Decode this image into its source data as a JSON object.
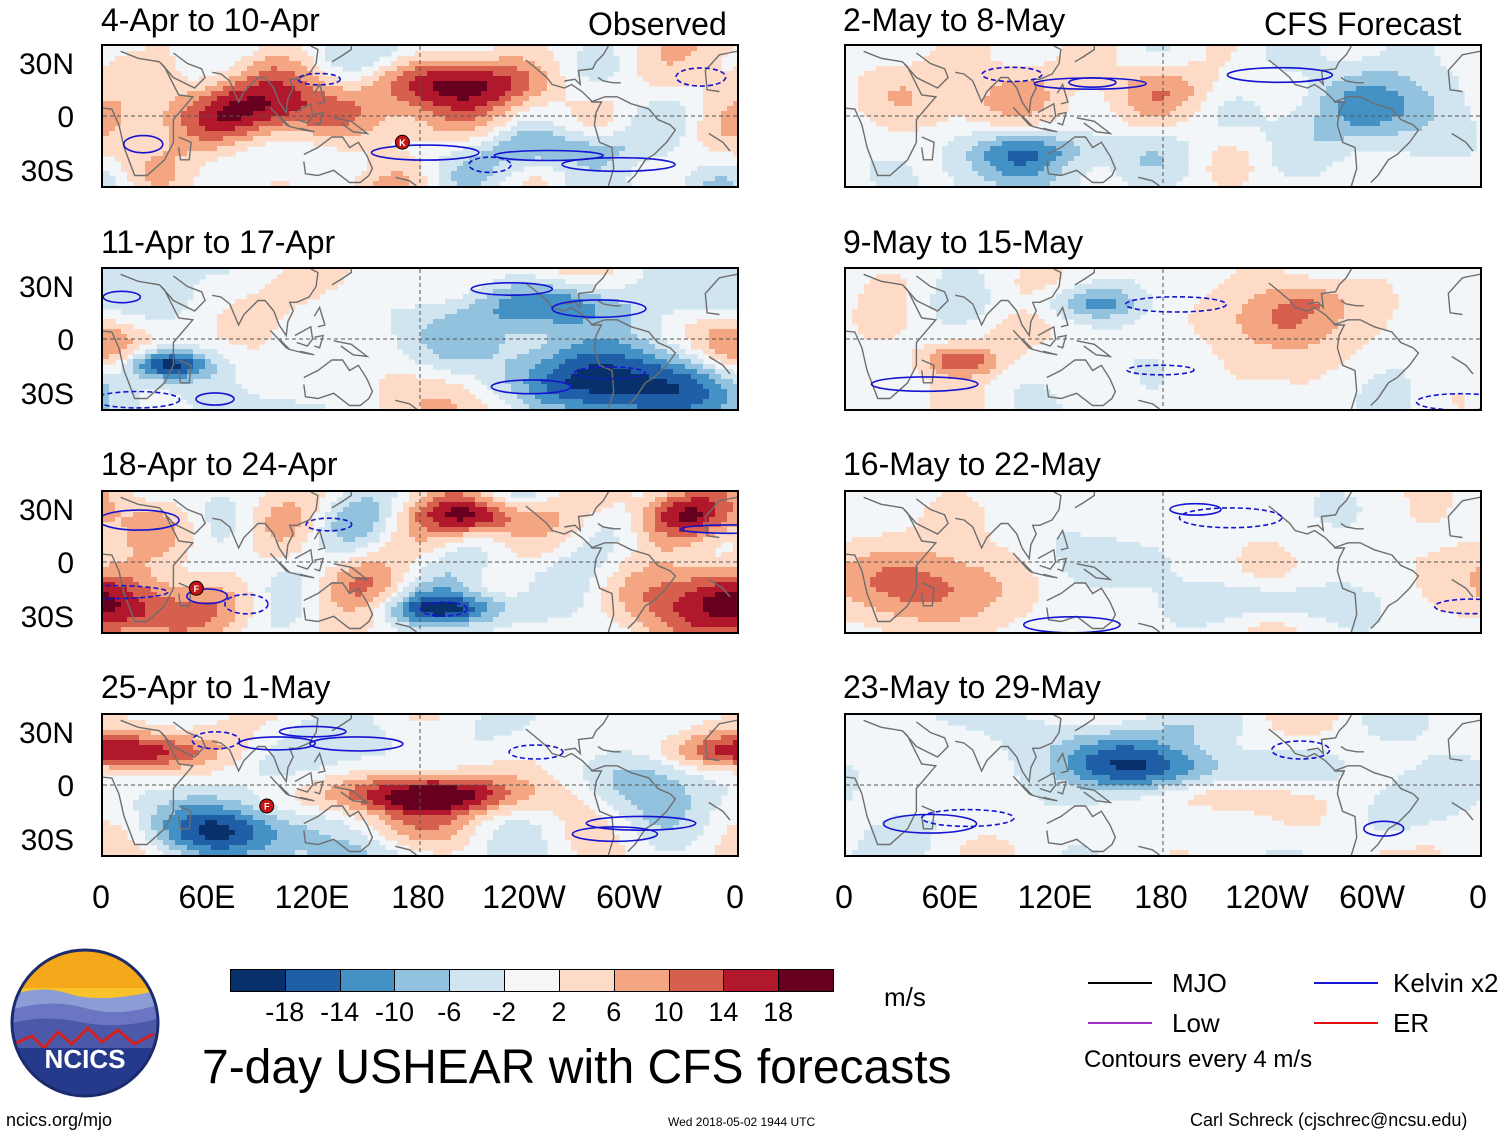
{
  "figure": {
    "title": "7-day USHEAR with CFS forecasts",
    "observed_header": "Observed",
    "forecast_header": "CFS Forecast"
  },
  "axes": {
    "lat_labels": [
      "30N",
      "0",
      "30S"
    ],
    "lon_labels": [
      "0",
      "60E",
      "120E",
      "180",
      "120W",
      "60W",
      "0"
    ]
  },
  "panels": {
    "observed": [
      {
        "period": "4-Apr to 10-Apr",
        "storms": [
          {
            "code": "K",
            "lon": 170,
            "lat": -15
          }
        ]
      },
      {
        "period": "11-Apr to 17-Apr",
        "storms": []
      },
      {
        "period": "18-Apr to 24-Apr",
        "storms": [
          {
            "code": "F",
            "lon": 53,
            "lat": -15
          }
        ]
      },
      {
        "period": "25-Apr to 1-May",
        "storms": [
          {
            "code": "F",
            "lon": 93,
            "lat": -12
          }
        ]
      }
    ],
    "forecast": [
      {
        "period": "2-May to 8-May",
        "storms": []
      },
      {
        "period": "9-May to 15-May",
        "storms": []
      },
      {
        "period": "16-May to 22-May",
        "storms": []
      },
      {
        "period": "23-May to 29-May",
        "storms": []
      }
    ]
  },
  "colorbar": {
    "colors": [
      "#08306b",
      "#1f5fa8",
      "#4491c6",
      "#92c2de",
      "#d1e5f0",
      "#f7f7f7",
      "#fddbc7",
      "#f4a582",
      "#d6604d",
      "#b2182b",
      "#67001f"
    ],
    "labels": [
      "-18",
      "-14",
      "-10",
      "-6",
      "-2",
      "2",
      "6",
      "10",
      "14",
      "18"
    ],
    "units": "m/s"
  },
  "legend": {
    "items": [
      {
        "label": "MJO",
        "color": "#000000"
      },
      {
        "label": "Kelvin x2",
        "color": "#1414d2"
      },
      {
        "label": "Low",
        "color": "#9b30c8"
      },
      {
        "label": "ER",
        "color": "#e01010"
      }
    ],
    "note": "Contours every 4 m/s"
  },
  "logo": {
    "text": "NCICS"
  },
  "footer": {
    "left": "ncics.org/mjo",
    "center": "Wed 2018-05-02 1944 UTC",
    "right": "Carl Schreck (cjschrec@ncsu.edu)"
  }
}
